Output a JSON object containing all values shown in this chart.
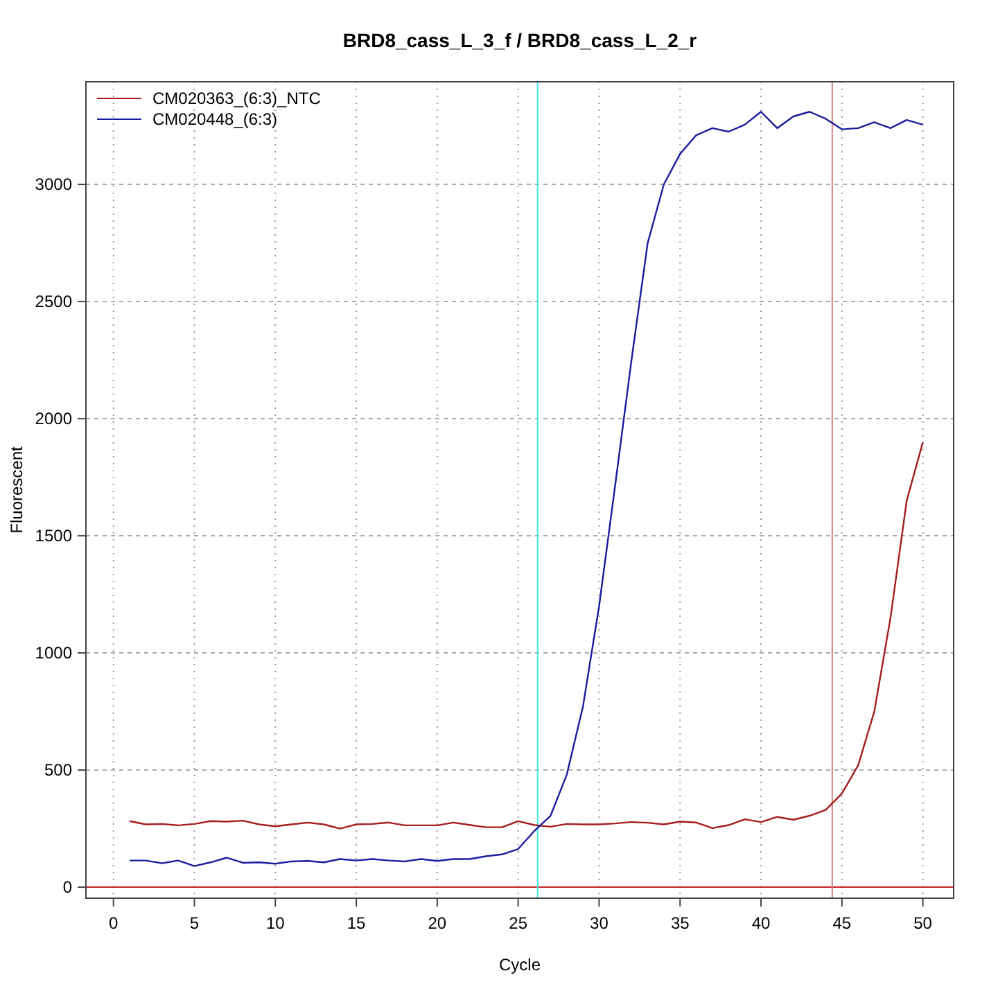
{
  "chart_data": {
    "type": "line",
    "title": "BRD8_cass_L_3_f / BRD8_cass_L_2_r",
    "xlabel": "Cycle",
    "ylabel": "Fluorescent",
    "x": [
      1,
      2,
      3,
      4,
      5,
      6,
      7,
      8,
      9,
      10,
      11,
      12,
      13,
      14,
      15,
      16,
      17,
      18,
      19,
      20,
      21,
      22,
      23,
      24,
      25,
      26,
      27,
      28,
      29,
      30,
      31,
      32,
      33,
      34,
      35,
      36,
      37,
      38,
      39,
      40,
      41,
      42,
      43,
      44,
      45,
      46,
      47,
      48,
      49,
      50
    ],
    "series": [
      {
        "name": "CM020363_(6:3)_NTC",
        "color": "#a51c1c",
        "values": [
          282,
          268,
          270,
          264,
          270,
          282,
          280,
          284,
          268,
          260,
          268,
          276,
          268,
          250,
          268,
          270,
          276,
          264,
          264,
          264,
          276,
          266,
          256,
          256,
          282,
          265,
          258,
          270,
          268,
          268,
          272,
          278,
          275,
          268,
          280,
          276,
          252,
          265,
          290,
          278,
          300,
          288,
          305,
          330,
          400,
          520,
          750,
          1150,
          1650,
          1900
        ]
      },
      {
        "name": "CM020448_(6:3)",
        "color": "#1c1ca0",
        "values": [
          114,
          114,
          102,
          114,
          90,
          106,
          126,
          104,
          106,
          100,
          110,
          112,
          106,
          120,
          114,
          120,
          114,
          110,
          120,
          112,
          120,
          120,
          132,
          140,
          163,
          240,
          305,
          480,
          770,
          1200,
          1720,
          2250,
          2750,
          3000,
          3130,
          3210,
          3240,
          3225,
          3255,
          3310,
          3240,
          3290,
          3310,
          3280,
          3235,
          3240,
          3265,
          3240,
          3275,
          3255
        ]
      }
    ],
    "xlim": [
      -1.7,
      51.9
    ],
    "xticks": [
      0,
      5,
      10,
      15,
      20,
      25,
      30,
      35,
      40,
      45,
      50
    ],
    "ylim": [
      -47,
      3438
    ],
    "yticks": [
      0,
      500,
      1000,
      1500,
      2000,
      2500,
      3000
    ],
    "grid": true,
    "legend": "top left",
    "line_style": "solid",
    "marker": "none",
    "ref_lines": [
      {
        "axis": "y",
        "value": 0,
        "color": "#cc2222"
      },
      {
        "axis": "x",
        "value": 26.2,
        "color": "#40e8f0"
      },
      {
        "axis": "x",
        "value": 44.4,
        "color": "#d08080"
      }
    ]
  }
}
